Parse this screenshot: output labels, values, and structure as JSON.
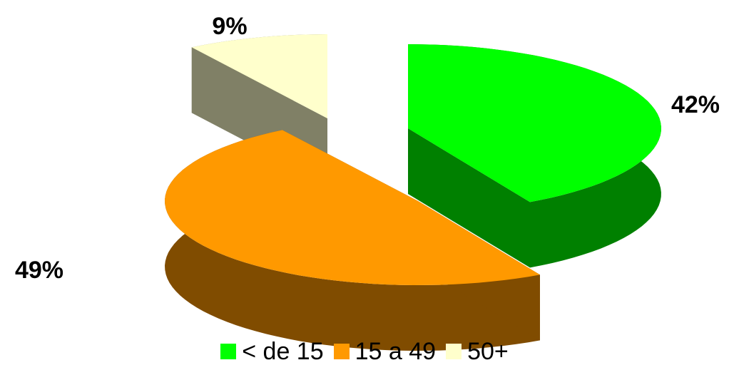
{
  "chart_data": {
    "type": "pie",
    "style": "3d-exploded",
    "categories": [
      "< de 15",
      "15 a 49",
      "50+"
    ],
    "values": [
      42,
      49,
      9
    ],
    "data_labels": [
      "42%",
      "49%",
      "9%"
    ],
    "colors": {
      "< de 15": {
        "top": "#00ff00",
        "side": "#008000"
      },
      "15 a 49": {
        "top": "#ff9900",
        "side": "#804c00"
      },
      "50+": {
        "top": "#ffffcc",
        "side": "#808066"
      }
    },
    "legend_position": "bottom",
    "title": "",
    "xlabel": "",
    "ylabel": ""
  }
}
